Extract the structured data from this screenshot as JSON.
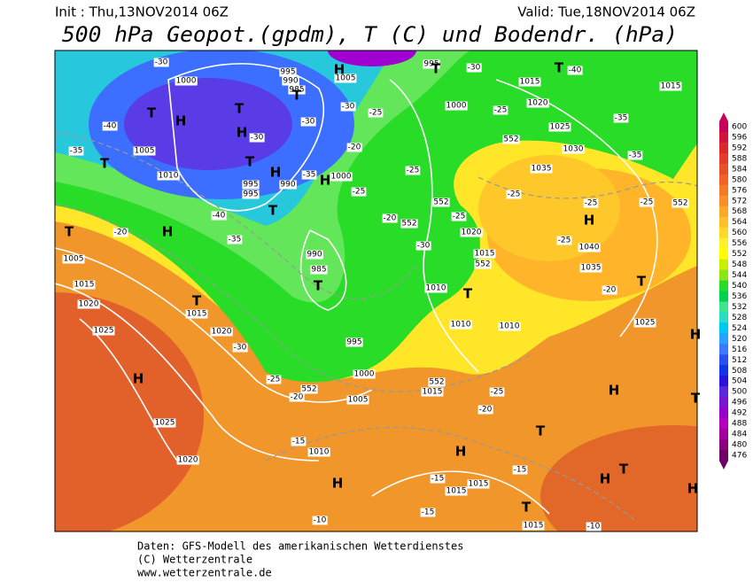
{
  "header": {
    "init": "Init : Thu,13NOV2014 06Z",
    "valid": "Valid: Tue,18NOV2014 06Z",
    "title": "500 hPa Geopot.(gpdm), T (C) und Bodendr. (hPa)"
  },
  "map": {
    "pressure_labels": [
      995,
      990,
      985,
      1005,
      1000,
      1005,
      1010,
      995,
      995,
      990,
      1000,
      995,
      1015,
      1000,
      1020,
      1025,
      1030,
      1035,
      1015,
      1020,
      1015,
      1010,
      1040,
      1035,
      990,
      985,
      1015,
      1020,
      995,
      1000,
      1005,
      1015,
      1010,
      1010,
      1025,
      1005,
      1015,
      1020,
      1025,
      1025,
      1020,
      1010,
      1015,
      1015,
      1015
    ],
    "temperature_labels": [
      -30,
      -40,
      -35,
      -30,
      -35,
      -30,
      -30,
      -25,
      -30,
      -25,
      -20,
      -25,
      -20,
      -25,
      -25,
      -30,
      -25,
      -25,
      -20,
      -20,
      -35,
      -40,
      -35,
      -35,
      -40,
      -25,
      -25,
      -30,
      -25,
      -20,
      -15,
      -20,
      -25,
      -15,
      -15,
      -15,
      -10,
      -10
    ],
    "geopotential_labels": [
      552,
      552,
      552,
      552,
      552,
      552,
      552
    ],
    "markers": [
      "T",
      "H",
      "T",
      "H",
      "T",
      "H",
      "T",
      "H",
      "T",
      "H",
      "T",
      "T",
      "T",
      "T",
      "H",
      "T",
      "T",
      "H",
      "H",
      "T",
      "H",
      "T",
      "H",
      "H",
      "T",
      "T",
      "H",
      "T",
      "H",
      "H",
      "T"
    ]
  },
  "colorbar": {
    "levels": [
      600,
      596,
      592,
      588,
      584,
      580,
      576,
      572,
      568,
      564,
      560,
      556,
      552,
      548,
      544,
      540,
      536,
      532,
      528,
      524,
      520,
      516,
      512,
      508,
      504,
      500,
      496,
      492,
      488,
      484,
      480,
      476
    ],
    "colors": [
      "#c8005a",
      "#d2143c",
      "#dc282a",
      "#e43c28",
      "#ea5028",
      "#f06428",
      "#f47a28",
      "#f89028",
      "#fca828",
      "#ffc028",
      "#ffd828",
      "#fff028",
      "#ffff00",
      "#c8f000",
      "#8ce614",
      "#28dc28",
      "#00d250",
      "#3ce68c",
      "#28dcc8",
      "#00c8f0",
      "#28a0ff",
      "#3c78ff",
      "#2850f0",
      "#1432e6",
      "#2814dc",
      "#5a28dc",
      "#7814d2",
      "#9600c8",
      "#b400be",
      "#a0009c",
      "#8c0082",
      "#6e0064"
    ]
  },
  "footer": [
    "Daten: GFS-Modell des amerikanischen Wetterdienstes",
    "(C) Wetterzentrale",
    "www.wetterzentrale.de"
  ]
}
